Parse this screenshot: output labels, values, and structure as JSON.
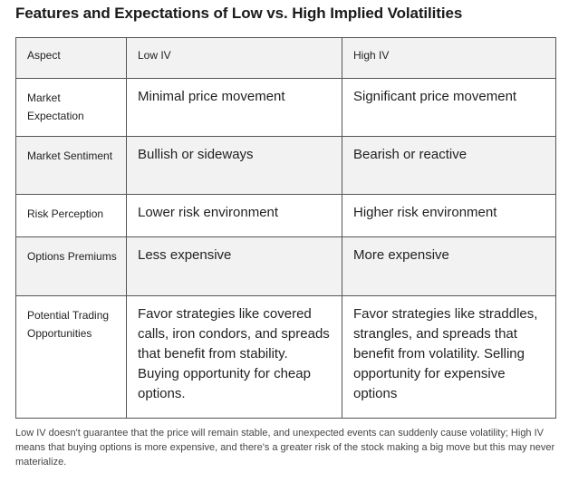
{
  "title": "Features and Expectations of Low vs. High Implied Volatilities",
  "table": {
    "headers": [
      "Aspect",
      "Low IV",
      "High IV"
    ],
    "rows": [
      {
        "aspect": "Market Expectation",
        "low": "Minimal price movement",
        "high": "Significant price movement"
      },
      {
        "aspect": "Market Sentiment",
        "low": "Bullish or sideways",
        "high": "Bearish or reactive"
      },
      {
        "aspect": "Risk Perception",
        "low": "Lower risk environment",
        "high": "Higher risk environment"
      },
      {
        "aspect": "Options Premiums",
        "low": "Less expensive",
        "high": "More expensive"
      },
      {
        "aspect": "Potential Trading Opportunities",
        "low": "Favor strategies like covered calls, iron condors, and spreads that benefit from stability. Buying opportunity for cheap options.",
        "high": "Favor strategies like straddles, strangles, and spreads that benefit from volatility. Selling opportunity for expensive options"
      }
    ]
  },
  "caption": "Low IV doesn't guarantee that the price will remain stable, and unexpected events can suddenly cause volatility; High IV means that buying options is more expensive, and there's a greater risk of the stock making a big move but this may never materialize."
}
